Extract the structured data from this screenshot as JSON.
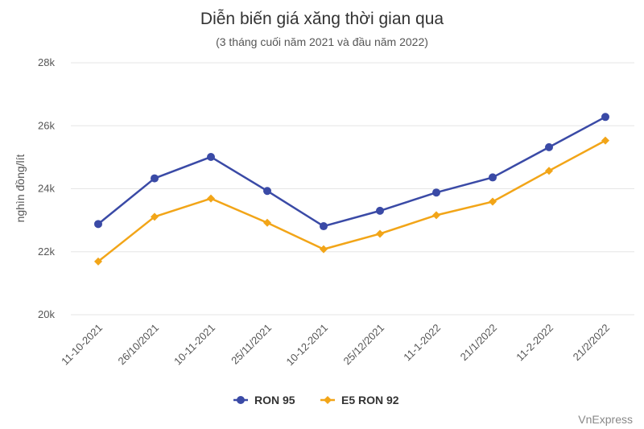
{
  "chart_data": {
    "type": "line",
    "title": "Diễn biến giá xăng thời gian qua",
    "subtitle": "(3 tháng cuối năm 2021 và đầu năm 2022)",
    "ylabel": "nghìn đồng/lít",
    "xlabel": "",
    "ylim": [
      20000,
      28000
    ],
    "yticks": [
      20000,
      22000,
      24000,
      26000,
      28000
    ],
    "ytick_labels": [
      "20k",
      "22k",
      "24k",
      "26k",
      "28k"
    ],
    "grid": true,
    "legend_position": "bottom",
    "categories": [
      "11-10-2021",
      "26/10/2021",
      "10-11-2021",
      "25/11/2021",
      "10-12-2021",
      "25/12/2021",
      "11-1-2022",
      "21/1/2022",
      "11-2-2022",
      "21/2/2022"
    ],
    "series": [
      {
        "name": "RON 95",
        "color": "#3a4aa6",
        "marker": "circle",
        "values": [
          22880,
          24330,
          25010,
          23930,
          22810,
          23300,
          23880,
          24360,
          25320,
          26280
        ]
      },
      {
        "name": "E5 RON 92",
        "color": "#f2a518",
        "marker": "diamond",
        "values": [
          21690,
          23110,
          23690,
          22920,
          22080,
          22570,
          23160,
          23590,
          24570,
          25530
        ]
      }
    ],
    "credit": "VnExpress"
  }
}
